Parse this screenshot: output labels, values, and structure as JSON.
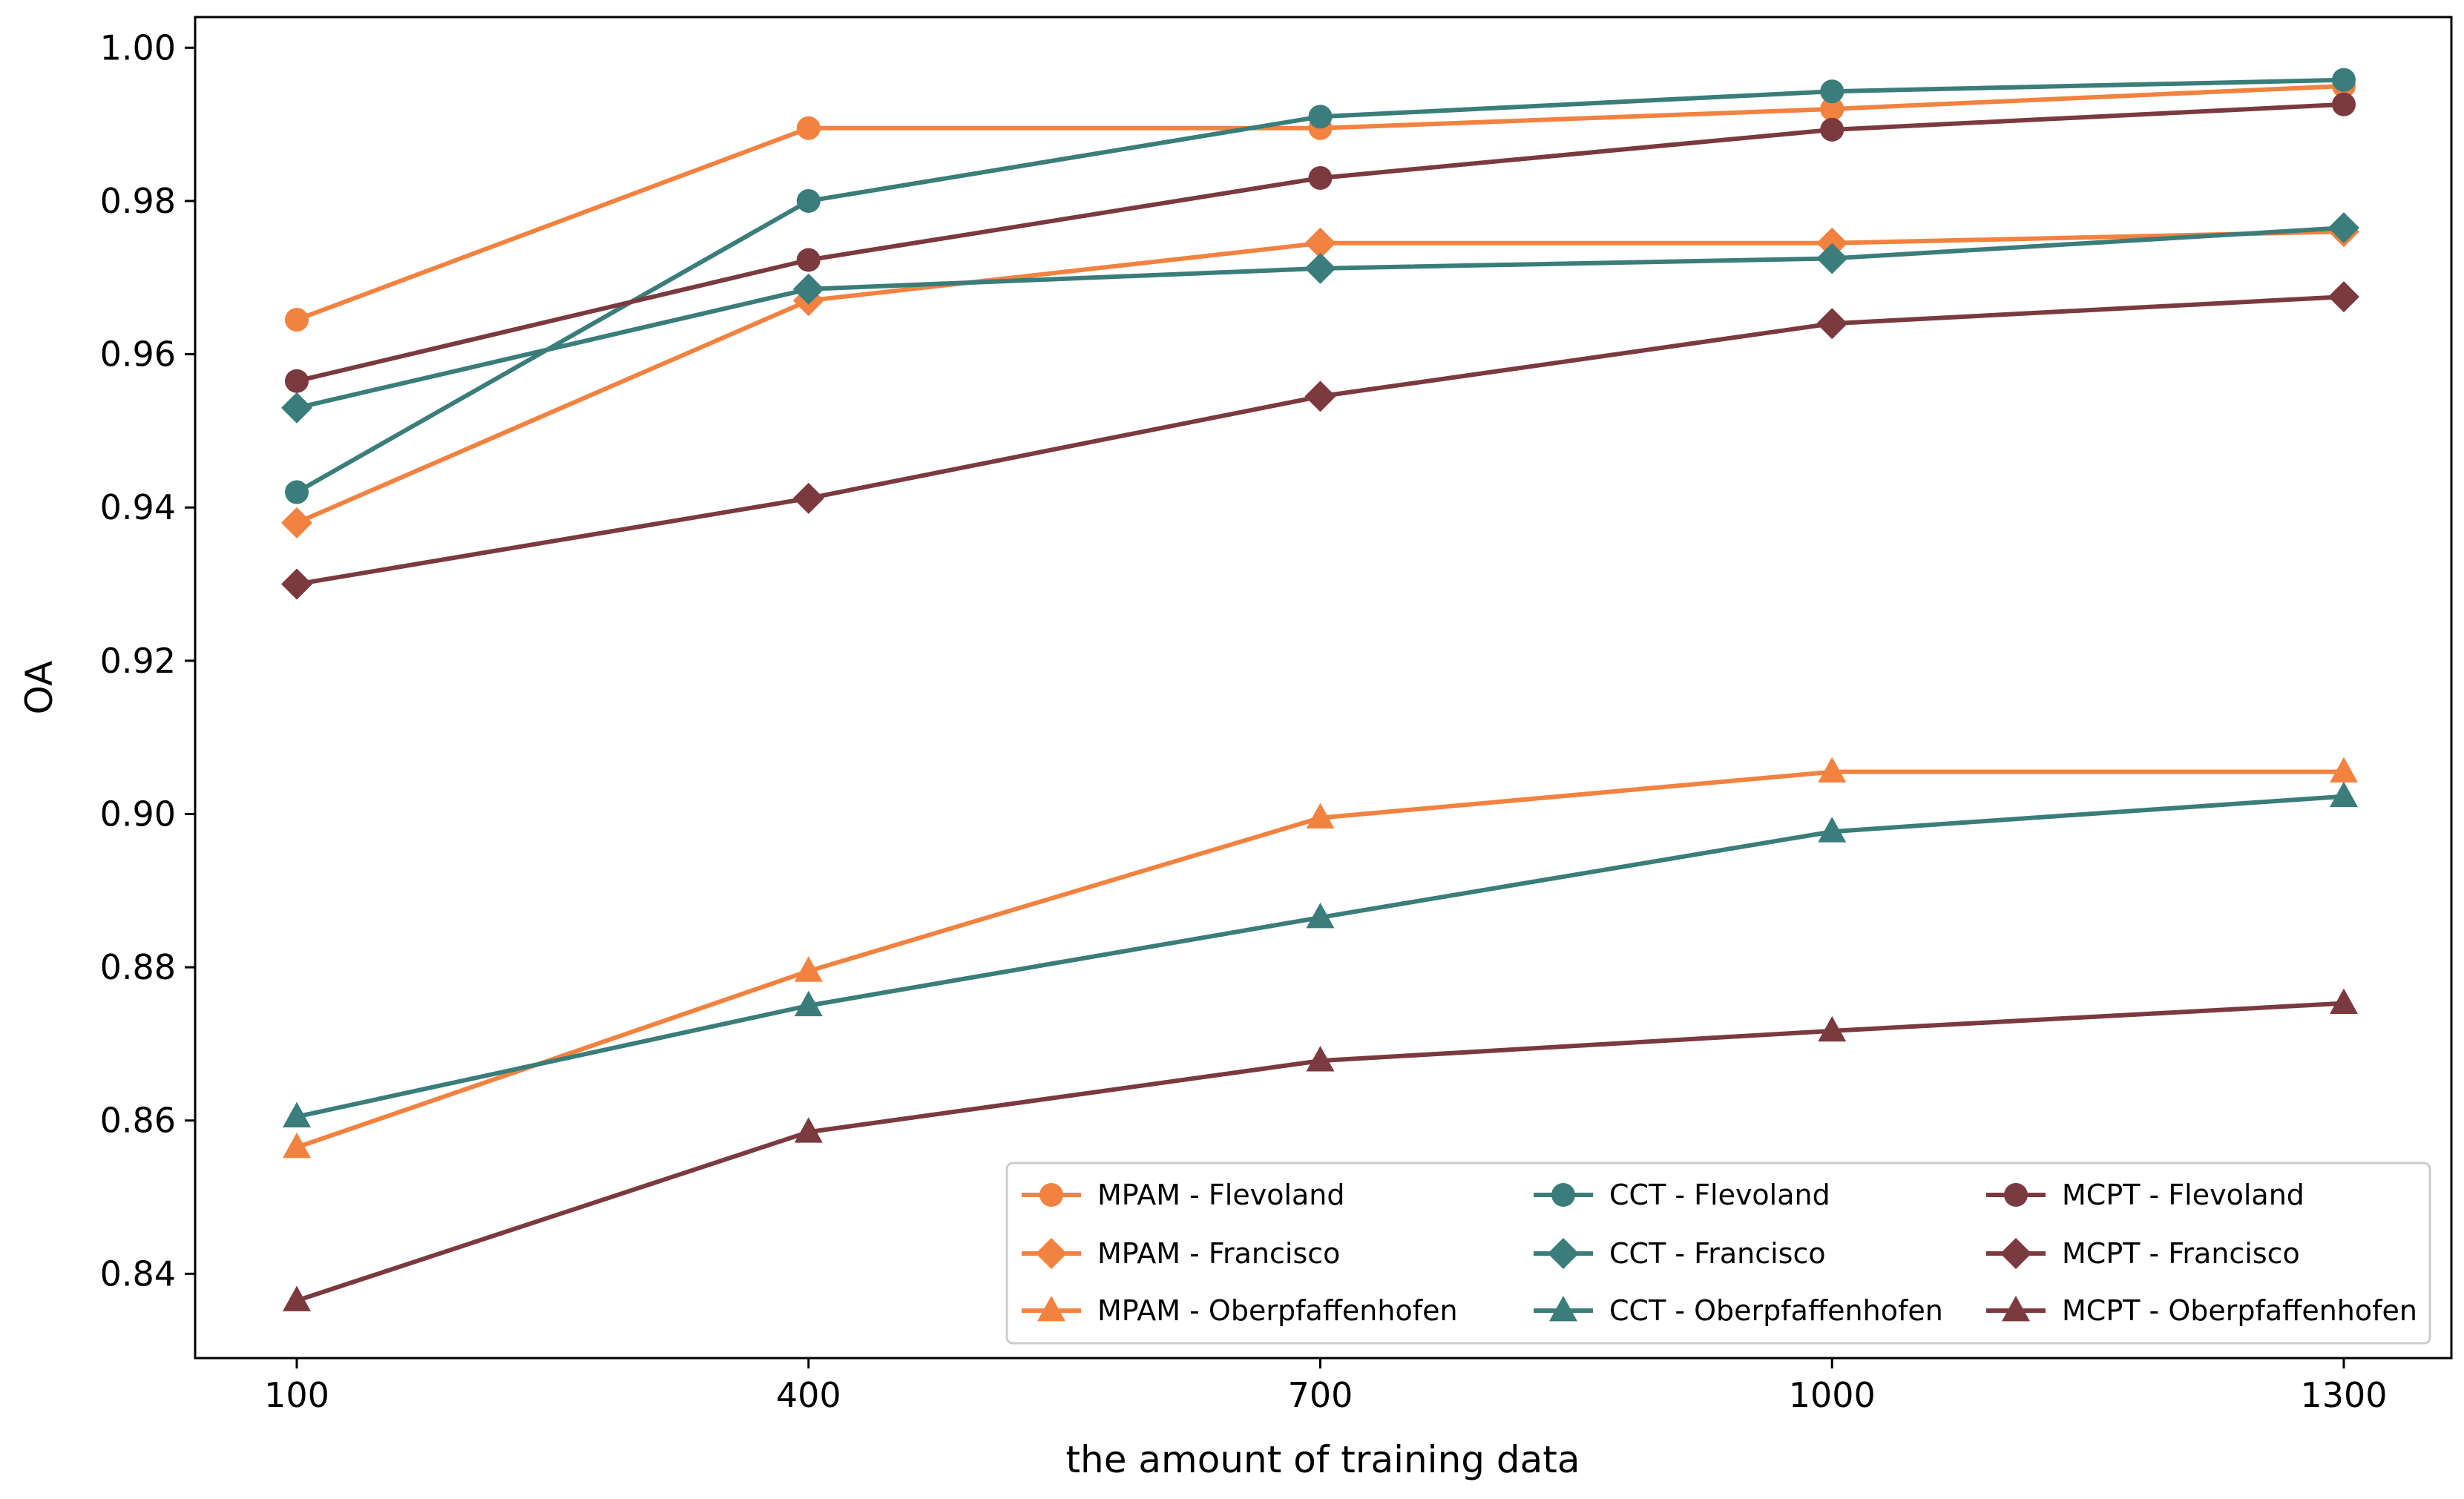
{
  "chart_data": {
    "type": "line",
    "title": "",
    "xlabel": "the amount of training data",
    "ylabel": "OA",
    "x": [
      100,
      400,
      700,
      1000,
      1300
    ],
    "x_tick_labels": [
      "100",
      "400",
      "700",
      "1000",
      "1300"
    ],
    "ylim": [
      0.829,
      1.004
    ],
    "y_ticks": [
      0.84,
      0.86,
      0.88,
      0.9,
      0.92,
      0.94,
      0.96,
      0.98,
      1.0
    ],
    "y_tick_labels": [
      "0.84",
      "0.86",
      "0.88",
      "0.90",
      "0.92",
      "0.94",
      "0.96",
      "0.98",
      "1.00"
    ],
    "grid": false,
    "legend_position": "bottom-right",
    "colors": {
      "MPAM": "#f28240",
      "CCT": "#3a7d7b",
      "MCPT": "#7b3a3f"
    },
    "series": [
      {
        "name": "MPAM - Flevoland",
        "model": "MPAM",
        "marker": "circle",
        "values": [
          0.9645,
          0.9895,
          0.9895,
          0.992,
          0.995
        ]
      },
      {
        "name": "MPAM - Francisco",
        "model": "MPAM",
        "marker": "diamond",
        "values": [
          0.938,
          0.967,
          0.9745,
          0.9745,
          0.976
        ]
      },
      {
        "name": "MPAM - Oberpfaffenhofen",
        "model": "MPAM",
        "marker": "triangle",
        "values": [
          0.8565,
          0.8795,
          0.8995,
          0.9055,
          0.9055
        ]
      },
      {
        "name": "CCT - Flevoland",
        "model": "CCT",
        "marker": "circle",
        "values": [
          0.942,
          0.98,
          0.991,
          0.9943,
          0.9958
        ]
      },
      {
        "name": "CCT - Francisco",
        "model": "CCT",
        "marker": "diamond",
        "values": [
          0.953,
          0.9685,
          0.9712,
          0.9725,
          0.9765
        ]
      },
      {
        "name": "CCT - Oberpfaffenhofen",
        "model": "CCT",
        "marker": "triangle",
        "values": [
          0.8605,
          0.875,
          0.8865,
          0.8977,
          0.9023
        ]
      },
      {
        "name": "MCPT - Flevoland",
        "model": "MCPT",
        "marker": "circle",
        "values": [
          0.9565,
          0.9723,
          0.983,
          0.9893,
          0.9926
        ]
      },
      {
        "name": "MCPT - Francisco",
        "model": "MCPT",
        "marker": "diamond",
        "values": [
          0.93,
          0.9412,
          0.9545,
          0.964,
          0.9675
        ]
      },
      {
        "name": "MCPT - Oberpfaffenhofen",
        "model": "MCPT",
        "marker": "triangle",
        "values": [
          0.8365,
          0.8585,
          0.8678,
          0.8717,
          0.8753
        ]
      }
    ]
  }
}
